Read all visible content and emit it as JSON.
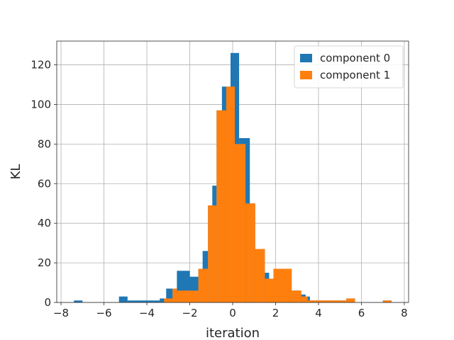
{
  "chart_data": {
    "type": "bar",
    "title": "",
    "xlabel": "iteration",
    "ylabel": "KL",
    "xlim": [
      -8.2,
      8.2
    ],
    "ylim": [
      0,
      132
    ],
    "xticks": [
      -8,
      -6,
      -4,
      -2,
      0,
      2,
      4,
      6,
      8
    ],
    "yticks": [
      0,
      20,
      40,
      60,
      80,
      100,
      120
    ],
    "xtick_labels": [
      "−8",
      "−6",
      "−4",
      "−2",
      "0",
      "2",
      "4",
      "6",
      "8"
    ],
    "ytick_labels": [
      "0",
      "20",
      "40",
      "60",
      "80",
      "100",
      "120"
    ],
    "grid": true,
    "legend_position": "top-right",
    "series": [
      {
        "name": "component 0",
        "color": "#1f77b4",
        "bins": [
          {
            "x0": -7.4,
            "x1": -7.0,
            "count": 1
          },
          {
            "x0": -5.3,
            "x1": -4.9,
            "count": 3
          },
          {
            "x0": -4.9,
            "x1": -4.5,
            "count": 1
          },
          {
            "x0": -4.5,
            "x1": -4.1,
            "count": 1
          },
          {
            "x0": -4.1,
            "x1": -3.7,
            "count": 1
          },
          {
            "x0": -3.7,
            "x1": -3.4,
            "count": 1
          },
          {
            "x0": -3.4,
            "x1": -3.1,
            "count": 2
          },
          {
            "x0": -3.1,
            "x1": -2.8,
            "count": 7
          },
          {
            "x0": -2.8,
            "x1": -2.6,
            "count": 6
          },
          {
            "x0": -2.6,
            "x1": -2.0,
            "count": 16
          },
          {
            "x0": -2.0,
            "x1": -1.6,
            "count": 13
          },
          {
            "x0": -1.6,
            "x1": -1.4,
            "count": 17
          },
          {
            "x0": -1.4,
            "x1": -1.15,
            "count": 26
          },
          {
            "x0": -1.15,
            "x1": -0.95,
            "count": 49
          },
          {
            "x0": -0.95,
            "x1": -0.75,
            "count": 59
          },
          {
            "x0": -0.75,
            "x1": -0.5,
            "count": 97
          },
          {
            "x0": -0.5,
            "x1": -0.1,
            "count": 109
          },
          {
            "x0": -0.1,
            "x1": 0.3,
            "count": 126
          },
          {
            "x0": 0.3,
            "x1": 0.8,
            "count": 83
          },
          {
            "x0": 0.8,
            "x1": 1.05,
            "count": 50
          },
          {
            "x0": 1.05,
            "x1": 1.5,
            "count": 27
          },
          {
            "x0": 1.5,
            "x1": 1.7,
            "count": 15
          },
          {
            "x0": 1.7,
            "x1": 1.95,
            "count": 12
          },
          {
            "x0": 1.95,
            "x1": 2.75,
            "count": 17
          },
          {
            "x0": 2.75,
            "x1": 3.15,
            "count": 6
          },
          {
            "x0": 3.15,
            "x1": 3.4,
            "count": 4
          },
          {
            "x0": 3.4,
            "x1": 3.6,
            "count": 3
          },
          {
            "x0": 3.6,
            "x1": 5.3,
            "count": 1
          },
          {
            "x0": 5.3,
            "x1": 5.7,
            "count": 2
          },
          {
            "x0": 7.0,
            "x1": 7.4,
            "count": 1
          }
        ]
      },
      {
        "name": "component 1",
        "color": "#ff7f0e",
        "bins": [
          {
            "x0": -3.2,
            "x1": -2.8,
            "count": 2
          },
          {
            "x0": -2.8,
            "x1": -2.6,
            "count": 7
          },
          {
            "x0": -2.6,
            "x1": -1.6,
            "count": 6
          },
          {
            "x0": -1.6,
            "x1": -1.15,
            "count": 17
          },
          {
            "x0": -1.15,
            "x1": -0.75,
            "count": 49
          },
          {
            "x0": -0.75,
            "x1": -0.3,
            "count": 97
          },
          {
            "x0": -0.3,
            "x1": 0.1,
            "count": 109
          },
          {
            "x0": 0.1,
            "x1": 0.6,
            "count": 80
          },
          {
            "x0": 0.6,
            "x1": 1.05,
            "count": 50
          },
          {
            "x0": 1.05,
            "x1": 1.5,
            "count": 27
          },
          {
            "x0": 1.5,
            "x1": 1.9,
            "count": 12
          },
          {
            "x0": 1.9,
            "x1": 2.75,
            "count": 17
          },
          {
            "x0": 2.75,
            "x1": 3.2,
            "count": 6
          },
          {
            "x0": 3.2,
            "x1": 3.5,
            "count": 3
          },
          {
            "x0": 3.5,
            "x1": 5.3,
            "count": 1
          },
          {
            "x0": 5.3,
            "x1": 5.7,
            "count": 2
          },
          {
            "x0": 7.0,
            "x1": 7.4,
            "count": 1
          }
        ]
      }
    ]
  }
}
